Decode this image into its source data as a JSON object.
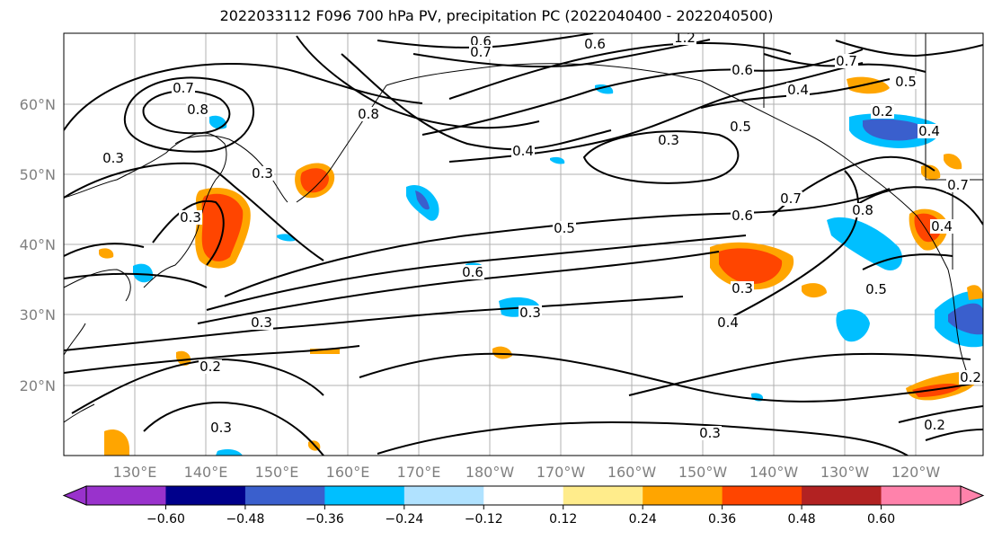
{
  "title": "2022033112 F096 700 hPa PV, precipitation PC (2022040400 - 2022040500)",
  "lat_labels": [
    "60°N",
    "50°N",
    "40°N",
    "30°N",
    "20°N"
  ],
  "lon_labels": [
    "130°E",
    "140°E",
    "150°E",
    "160°E",
    "170°E",
    "180°W",
    "170°W",
    "160°W",
    "150°W",
    "140°W",
    "130°W",
    "120°W"
  ],
  "contour_labels": [
    "0.7",
    "0.3",
    "0.3",
    "0.3",
    "0.8",
    "0.8",
    "0.6",
    "0.7",
    "1.2",
    "0.6",
    "0.4",
    "0.3",
    "0.5",
    "0.5",
    "0.7",
    "0.4",
    "0.8",
    "0.7",
    "0.3",
    "0.5",
    "0.6",
    "0.6",
    "0.5",
    "0.3",
    "0.3",
    "0.4",
    "0.3",
    "0.2",
    "0.3",
    "0.2",
    "0.2",
    "0.2",
    "0.4",
    "0.7",
    "0.4",
    "0.6"
  ],
  "colorbar": {
    "ticks": [
      "−0.60",
      "−0.48",
      "−0.36",
      "−0.24",
      "−0.12",
      "0.12",
      "0.24",
      "0.36",
      "0.48",
      "0.60"
    ],
    "colors": [
      "#9932cc",
      "#00008b",
      "#3a5fcd",
      "#00bfff",
      "#b0e2ff",
      "#ffffff",
      "#ffec8b",
      "#ffa500",
      "#ff4500",
      "#b22222",
      "#ff82ab"
    ]
  },
  "colors": {
    "line": "#000000",
    "grid": "#b0b0b0",
    "tick": "#7f7f7f"
  }
}
